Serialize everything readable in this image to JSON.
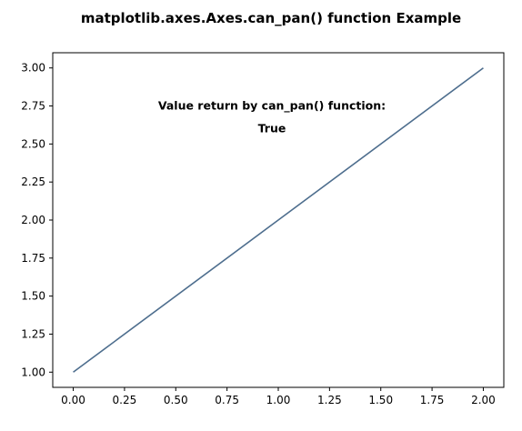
{
  "chart_data": {
    "type": "line",
    "title": "matplotlib.axes.Axes.can_pan() function Example",
    "xlabel": "",
    "ylabel": "",
    "xlim": [
      -0.1,
      2.1
    ],
    "ylim": [
      0.9,
      3.1
    ],
    "grid": false,
    "xticks": [
      "0.00",
      "0.25",
      "0.50",
      "0.75",
      "1.00",
      "1.25",
      "1.50",
      "1.75",
      "2.00"
    ],
    "yticks": [
      "1.00",
      "1.25",
      "1.50",
      "1.75",
      "2.00",
      "2.25",
      "2.50",
      "2.75",
      "3.00"
    ],
    "series": [
      {
        "x": [
          0,
          1,
          2
        ],
        "y": [
          1,
          2,
          3
        ],
        "color": "#4e6e8e"
      }
    ],
    "annotations": [
      {
        "text": "Value return by can_pan() function:",
        "x": 1.0,
        "y": 2.75
      },
      {
        "text": "True",
        "x": 1.0,
        "y": 2.6
      }
    ]
  }
}
